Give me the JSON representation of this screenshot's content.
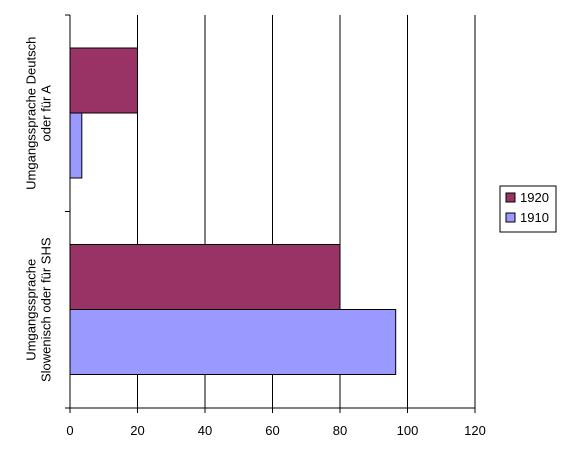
{
  "chart_data": {
    "type": "bar",
    "orientation": "horizontal",
    "categories": [
      [
        "Umgangssprache Deutsch",
        "oder für A"
      ],
      [
        "Umgangssprache",
        "Slowenisch oder für SHS"
      ]
    ],
    "series": [
      {
        "name": "1920",
        "color": "#993366",
        "values": [
          20,
          80
        ]
      },
      {
        "name": "1910",
        "color": "#9999ff",
        "values": [
          3.5,
          96.5
        ]
      }
    ],
    "xlim": [
      0,
      120
    ],
    "xticks": [
      0,
      20,
      40,
      60,
      80,
      100,
      120
    ],
    "grid": true,
    "legend_position": "right"
  }
}
